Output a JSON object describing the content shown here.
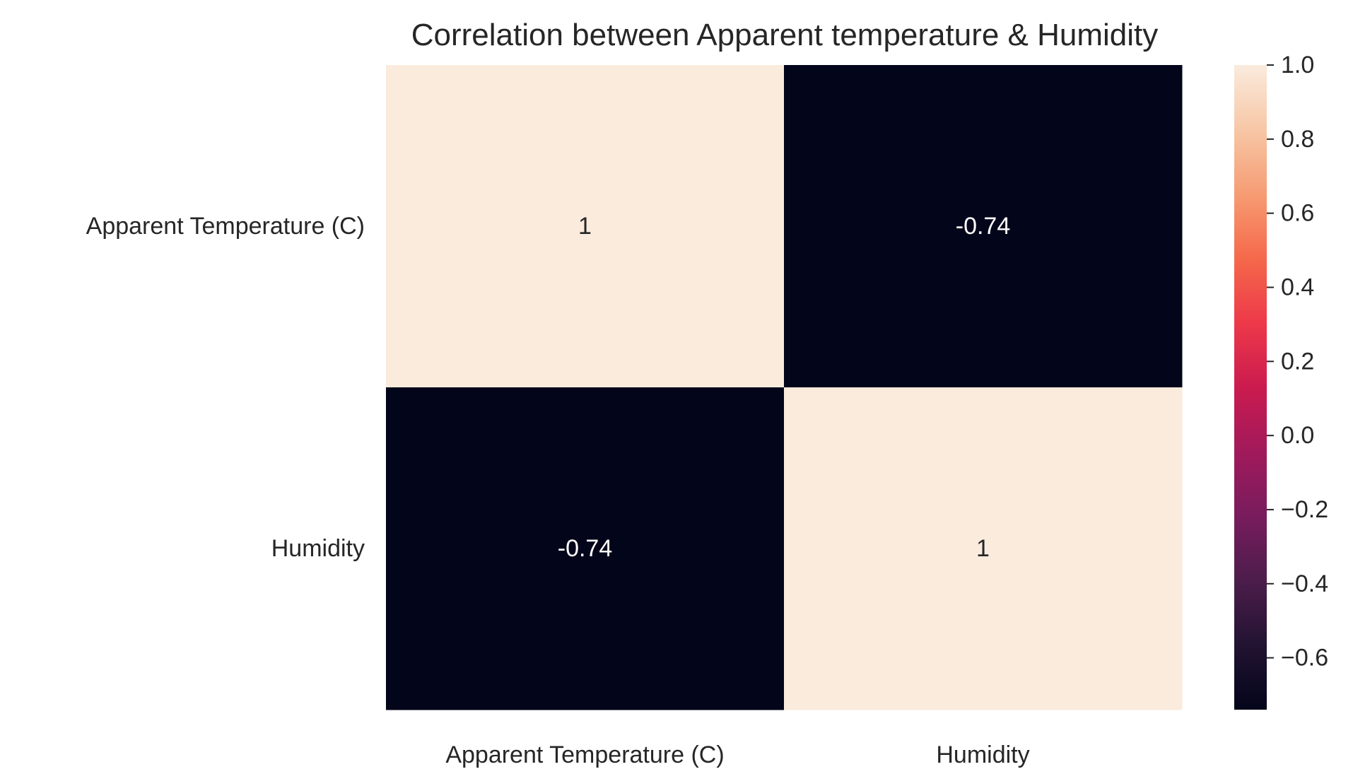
{
  "chart_data": {
    "type": "heatmap",
    "title": "Correlation between Apparent temperature & Humidity",
    "xlabel": "",
    "ylabel": "",
    "x_categories": [
      "Apparent Temperature (C)",
      "Humidity"
    ],
    "y_categories": [
      "Apparent Temperature (C)",
      "Humidity"
    ],
    "values": [
      [
        1,
        -0.74
      ],
      [
        -0.74,
        1
      ]
    ],
    "annotations": [
      [
        "1",
        "-0.74"
      ],
      [
        "-0.74",
        "1"
      ]
    ],
    "colorbar": {
      "range": [
        -0.74,
        1.0
      ],
      "ticks": [
        1.0,
        0.8,
        0.6,
        0.4,
        0.2,
        0.0,
        -0.2,
        -0.4,
        -0.6
      ],
      "tick_labels": [
        "1.0",
        "0.8",
        "0.6",
        "0.4",
        "0.2",
        "0.0",
        "−0.2",
        "−0.4",
        "−0.6"
      ],
      "colormap": "rocket",
      "colormap_stops": [
        "#03051a",
        "#221331",
        "#4c1d4b",
        "#781c5d",
        "#a11a5b",
        "#cb1b4f",
        "#ed3949",
        "#f5694b",
        "#f69c73",
        "#f7c7a6",
        "#faebdd"
      ]
    },
    "annotation_colors": {
      "light_cell_text": "#262626",
      "dark_cell_text": "#ffffff"
    },
    "grid": false
  }
}
